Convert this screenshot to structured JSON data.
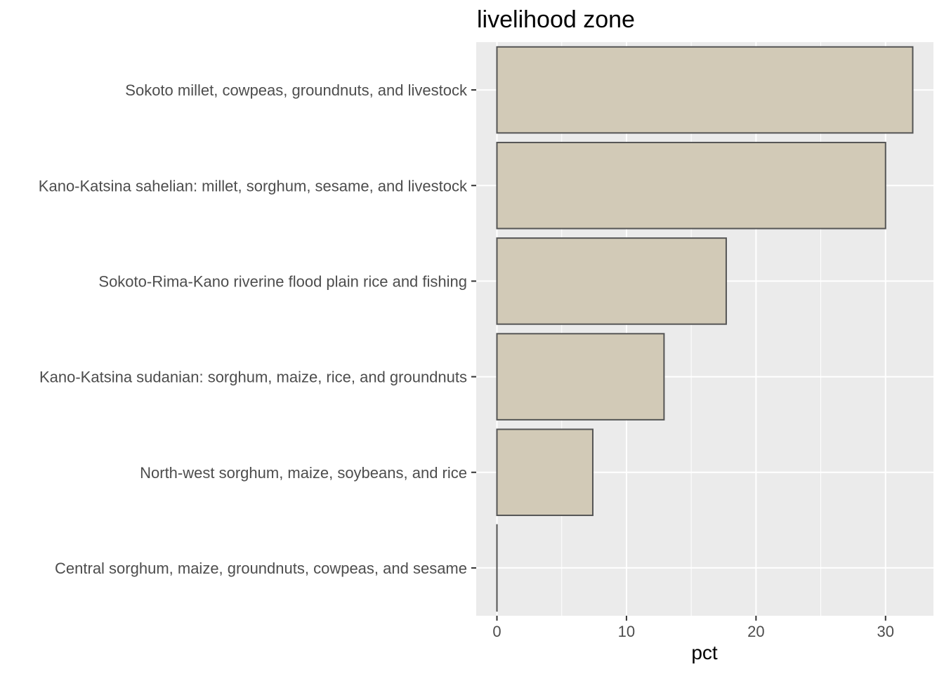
{
  "chart_data": {
    "type": "bar",
    "orientation": "horizontal",
    "title": "livelihood zone",
    "xlabel": "pct",
    "ylabel": "",
    "categories": [
      "Sokoto millet, cowpeas, groundnuts, and livestock",
      "Kano-Katsina sahelian: millet, sorghum, sesame, and livestock",
      "Sokoto-Rima-Kano riverine flood plain rice and fishing",
      "Kano-Katsina sudanian: sorghum, maize, rice, and groundnuts",
      "North-west sorghum, maize, soybeans, and rice",
      "Central sorghum, maize, groundnuts, cowpeas, and sesame"
    ],
    "values": [
      32.1,
      30.0,
      17.7,
      12.9,
      7.4,
      0.0
    ],
    "xlim": [
      -1.6,
      33.7
    ],
    "xticks": [
      0,
      10,
      20,
      30
    ],
    "bar_fill": "#d2cab7",
    "bar_stroke": "#555555",
    "panel_bg": "#ebebeb",
    "grid_color": "#ffffff",
    "grid": true
  }
}
